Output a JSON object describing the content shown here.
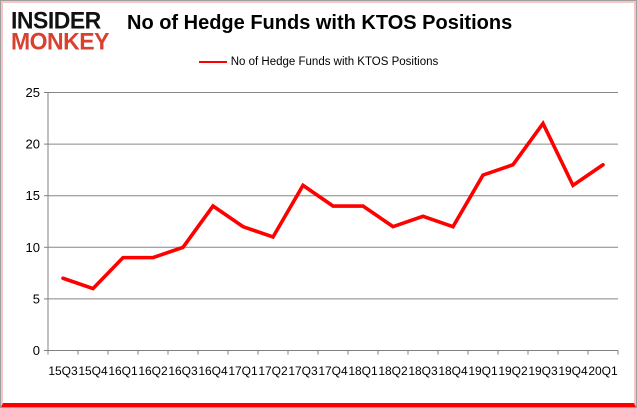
{
  "logo": {
    "line1": "INSIDER",
    "line2": "MONKEY"
  },
  "header": {
    "title": "No of Hedge Funds with KTOS Positions"
  },
  "legend": {
    "label": "No of Hedge Funds with KTOS Positions"
  },
  "colors": {
    "series_red": "#fe0000",
    "logo_black": "#111111",
    "logo_red": "#d8402f",
    "grid_gray": "#868686",
    "axis_gray": "#808080",
    "frame_pink": "#f5c6c6",
    "frame_gray": "#9e9e9e",
    "text_black": "#000000"
  },
  "chart_data": {
    "type": "line",
    "title": "No of Hedge Funds with KTOS Positions",
    "categories": [
      "15Q3",
      "15Q4",
      "16Q1",
      "16Q2",
      "16Q3",
      "16Q4",
      "17Q1",
      "17Q2",
      "17Q3",
      "17Q4",
      "18Q1",
      "18Q2",
      "18Q3",
      "18Q4",
      "19Q1",
      "19Q2",
      "19Q3",
      "19Q4",
      "20Q1"
    ],
    "series": [
      {
        "name": "No of Hedge Funds with KTOS Positions",
        "values": [
          7,
          6,
          9,
          9,
          10,
          14,
          12,
          11,
          16,
          14,
          14,
          12,
          13,
          12,
          17,
          18,
          22,
          16,
          18
        ]
      }
    ],
    "xlabel": "",
    "ylabel": "",
    "ylim": [
      0,
      25
    ],
    "yticks": [
      0,
      5,
      10,
      15,
      20,
      25
    ],
    "grid": true,
    "legend_position": "top-center"
  }
}
